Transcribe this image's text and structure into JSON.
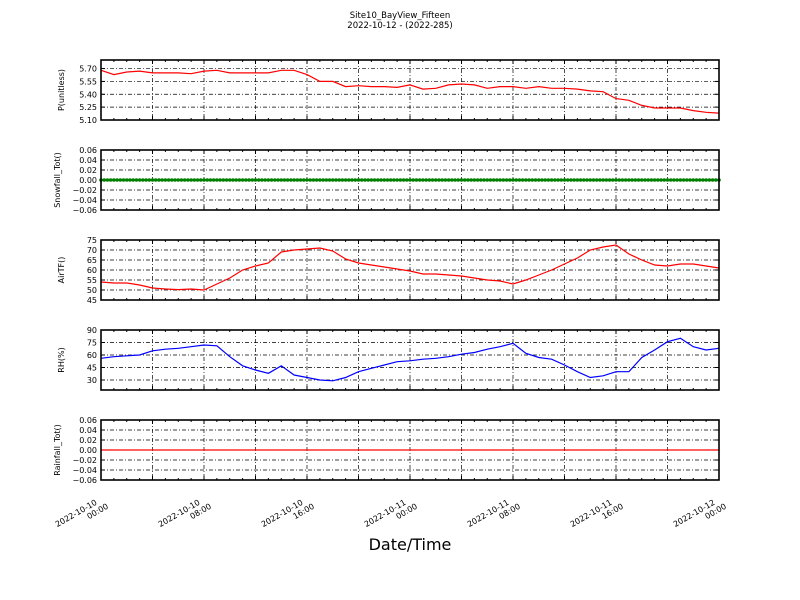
{
  "chart_data": {
    "title": "Site10_BayView_Fifteen",
    "subtitle": "2022-10-12 - (2022-285)",
    "xlabel": "Date/Time",
    "x_range": [
      "2022-10-10 00:00",
      "2022-10-12 00:00"
    ],
    "x_tick_labels": [
      [
        "2022-10-10",
        "00:00"
      ],
      [
        "2022-10-10",
        "08:00"
      ],
      [
        "2022-10-10",
        "16:00"
      ],
      [
        "2022-10-11",
        "00:00"
      ],
      [
        "2022-10-11",
        "08:00"
      ],
      [
        "2022-10-11",
        "16:00"
      ],
      [
        "2022-10-12",
        "00:00"
      ]
    ],
    "x_hours_from_2022_10_10": [
      0,
      1,
      2,
      3,
      4,
      5,
      6,
      7,
      8,
      9,
      10,
      11,
      12,
      13,
      14,
      15,
      16,
      17,
      18,
      19,
      20,
      21,
      22,
      23,
      24,
      25,
      26,
      27,
      28,
      29,
      30,
      31,
      32,
      33,
      34,
      35,
      36,
      37,
      38,
      39,
      40,
      41,
      42,
      43,
      44,
      45,
      46,
      47,
      48
    ],
    "grid": true,
    "panels": [
      {
        "type": "line",
        "ylabel": "P(unitless)",
        "ylim": [
          5.1,
          5.8
        ],
        "yticks": [
          "5.10",
          "5.25",
          "5.40",
          "5.55",
          "5.70"
        ],
        "color": "#ff0000",
        "values": [
          5.68,
          5.63,
          5.66,
          5.67,
          5.65,
          5.65,
          5.65,
          5.64,
          5.67,
          5.68,
          5.65,
          5.65,
          5.65,
          5.65,
          5.68,
          5.68,
          5.63,
          5.55,
          5.55,
          5.49,
          5.5,
          5.49,
          5.49,
          5.48,
          5.51,
          5.46,
          5.47,
          5.51,
          5.52,
          5.51,
          5.47,
          5.49,
          5.49,
          5.47,
          5.49,
          5.47,
          5.47,
          5.46,
          5.44,
          5.43,
          5.35,
          5.33,
          5.27,
          5.24,
          5.24,
          5.24,
          5.21,
          5.19,
          5.18
        ]
      },
      {
        "type": "line-markers",
        "ylabel": "Snowfall_Tot()",
        "ylim": [
          -0.06,
          0.06
        ],
        "yticks": [
          "-0.06",
          "-0.04",
          "-0.02",
          "0.00",
          "0.02",
          "0.04",
          "0.06"
        ],
        "color": "#008000",
        "values": [
          0,
          0,
          0,
          0,
          0,
          0,
          0,
          0,
          0,
          0,
          0,
          0,
          0,
          0,
          0,
          0,
          0,
          0,
          0,
          0,
          0,
          0,
          0,
          0,
          0,
          0,
          0,
          0,
          0,
          0,
          0,
          0,
          0,
          0,
          0,
          0,
          0,
          0,
          0,
          0,
          0,
          0,
          0,
          0,
          0,
          0,
          0,
          0,
          0
        ]
      },
      {
        "type": "line",
        "ylabel": "AirTF()",
        "ylim": [
          45,
          75
        ],
        "yticks": [
          "45",
          "50",
          "55",
          "60",
          "65",
          "70",
          "75"
        ],
        "color": "#ff0000",
        "values": [
          54,
          53.5,
          53.5,
          52.5,
          51,
          50.5,
          50.2,
          50.5,
          50,
          53,
          56,
          60,
          62,
          63.5,
          69,
          70,
          70.5,
          71,
          69.5,
          65.5,
          63.5,
          62.5,
          61.5,
          60.5,
          59.5,
          58,
          58,
          57.5,
          57,
          56,
          55,
          54.5,
          53,
          55,
          57.5,
          60,
          63,
          66,
          70,
          71.5,
          72.5,
          68,
          65,
          62.5,
          62,
          63,
          63,
          62,
          61
        ]
      },
      {
        "type": "line",
        "ylabel": "RH(%)",
        "ylim": [
          18,
          90
        ],
        "yticks": [
          "30",
          "45",
          "60",
          "75",
          "90"
        ],
        "color": "#0000ff",
        "values": [
          56,
          58,
          59,
          60,
          65,
          67,
          68,
          70,
          72,
          71,
          58,
          47,
          42,
          38,
          47,
          36,
          33,
          30,
          29,
          33,
          40,
          44,
          48,
          52,
          53,
          55,
          56,
          58,
          61,
          63,
          67,
          70,
          74,
          62,
          57,
          55,
          48,
          40,
          33,
          35,
          40,
          40,
          57,
          66,
          76,
          80,
          70,
          66,
          68
        ]
      },
      {
        "type": "line",
        "ylabel": "Rainfall_Tot()",
        "ylim": [
          -0.06,
          0.06
        ],
        "yticks": [
          "-0.06",
          "-0.04",
          "-0.02",
          "0.00",
          "0.02",
          "0.04",
          "0.06"
        ],
        "color": "#ff0000",
        "values": [
          0,
          0,
          0,
          0,
          0,
          0,
          0,
          0,
          0,
          0,
          0,
          0,
          0,
          0,
          0,
          0,
          0,
          0,
          0,
          0,
          0,
          0,
          0,
          0,
          0,
          0,
          0,
          0,
          0,
          0,
          0,
          0,
          0,
          0,
          0,
          0,
          0,
          0,
          0,
          0,
          0,
          0,
          0,
          0,
          0,
          0,
          0,
          0,
          0
        ]
      }
    ]
  }
}
